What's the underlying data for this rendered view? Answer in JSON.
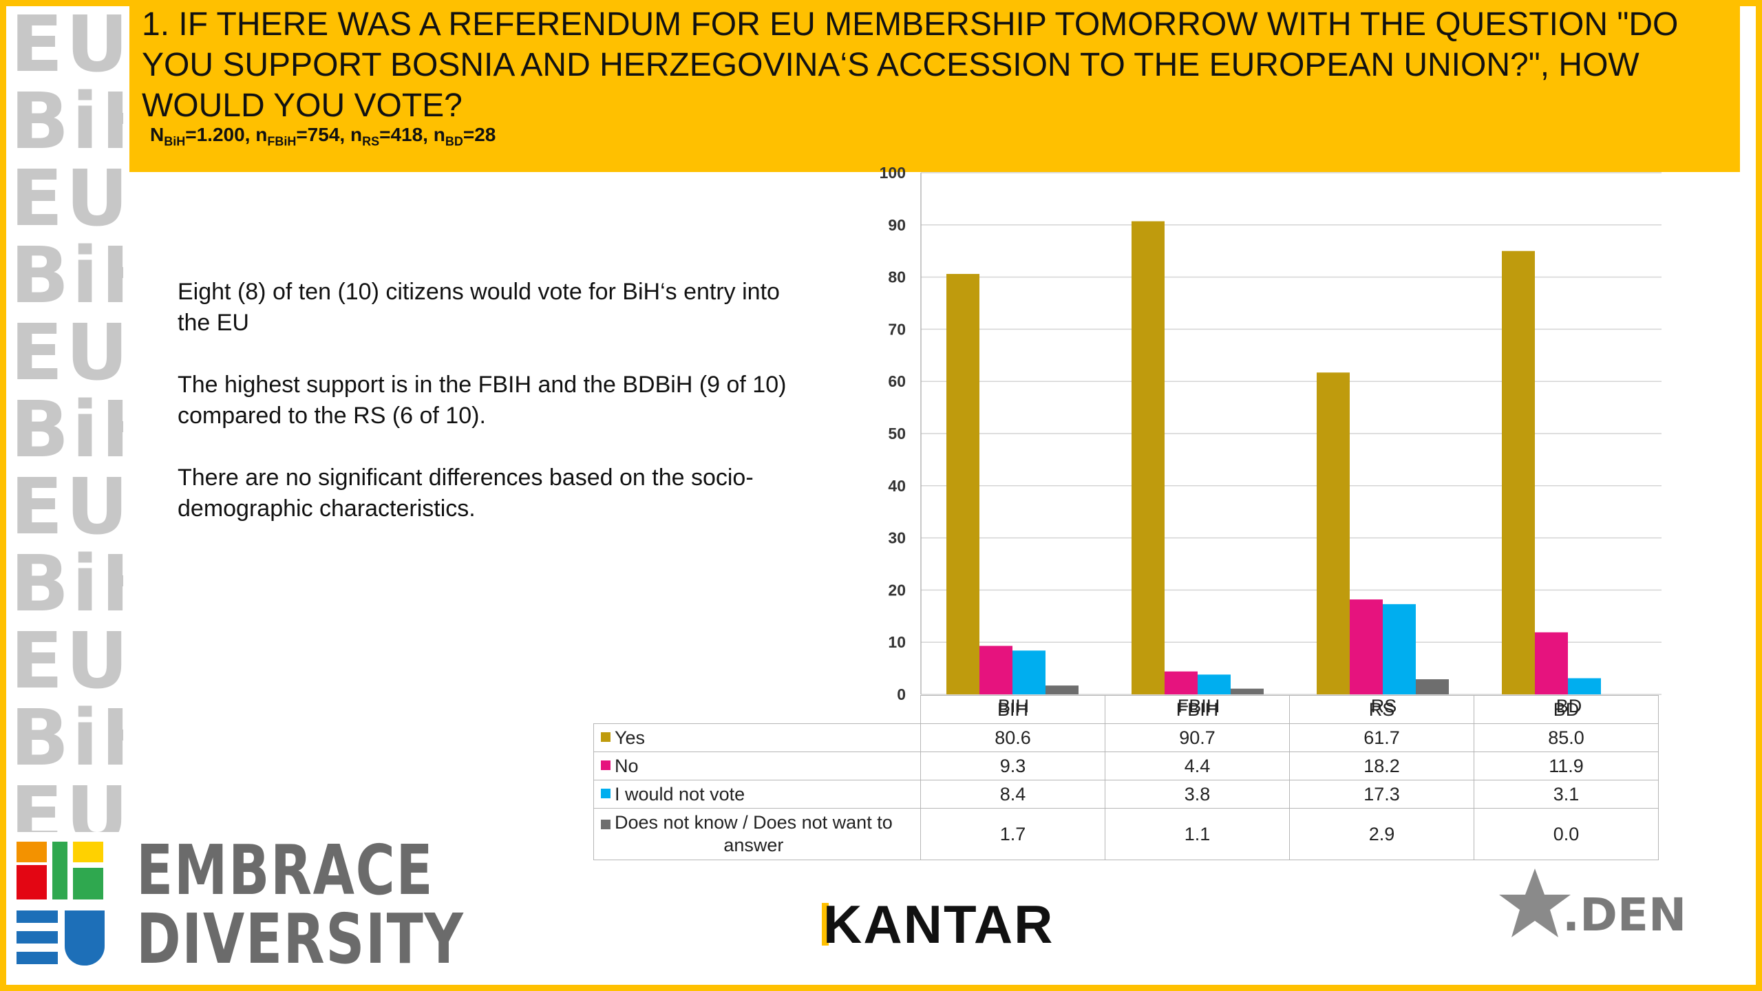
{
  "slide": {
    "title": "1. IF THERE WAS A REFERENDUM FOR EU MEMBERSHIP TOMORROW WITH THE QUESTION \"DO YOU SUPPORT BOSNIA AND HERZEGOVINA‘S ACCESSION TO THE EUROPEAN UNION?\", HOW WOULD YOU VOTE?",
    "sample": {
      "n_bih_label": "N",
      "n_bih_sub": "BiH",
      "n_bih_val": "=1.200, ",
      "n_fbih_label": "n",
      "n_fbih_sub": "FBiH",
      "n_fbih_val": "=754, ",
      "n_rs_label": "n",
      "n_rs_sub": "RS",
      "n_rs_val": "=418, ",
      "n_bd_label": "n",
      "n_bd_sub": "BD",
      "n_bd_val": "=28"
    },
    "commentary": [
      "Eight (8) of ten (10) citizens would vote for BiH‘s entry into the EU",
      "The highest support is in the FBIH and the BDBiH (9 of 10) compared to the RS (6 of 10).",
      "There are no significant differences based on the socio-demographic characteristics."
    ],
    "left_decoration": [
      "EU",
      "BiH"
    ],
    "logos": {
      "embrace_line1": "EMBRACE",
      "embrace_line2": "DIVERSITY",
      "kantar": "KANTAR",
      "den": ".DEN"
    }
  },
  "colors": {
    "accent": "#ffc000",
    "yes": "#bf9b0d",
    "no": "#e6137e",
    "would_not_vote": "#00aeef",
    "dont_know": "#6e6e6e"
  },
  "chart_data": {
    "type": "bar",
    "categories": [
      "BIH",
      "FBIH",
      "RS",
      "BD"
    ],
    "series": [
      {
        "name": "Yes",
        "values": [
          80.6,
          90.7,
          61.7,
          85.0
        ],
        "labels": [
          "80.6",
          "90.7",
          "61.7",
          "85.0"
        ]
      },
      {
        "name": "No",
        "values": [
          9.3,
          4.4,
          18.2,
          11.9
        ],
        "labels": [
          "9.3",
          "4.4",
          "18.2",
          "11.9"
        ]
      },
      {
        "name": "I would not vote",
        "values": [
          8.4,
          3.8,
          17.3,
          3.1
        ],
        "labels": [
          "8.4",
          "3.8",
          "17.3",
          "3.1"
        ]
      },
      {
        "name": "Does not know / Does not want to answer",
        "name_line1": "Does not know / Does not want to",
        "name_line2": "answer",
        "values": [
          1.7,
          1.1,
          2.9,
          0.0
        ],
        "labels": [
          "1.7",
          "1.1",
          "2.9",
          "0.0"
        ]
      }
    ],
    "ylim": [
      0,
      100
    ],
    "yticks": [
      "0",
      "10",
      "20",
      "30",
      "40",
      "50",
      "60",
      "70",
      "80",
      "90",
      "100"
    ],
    "grid": true,
    "legend": "data table below chart"
  }
}
